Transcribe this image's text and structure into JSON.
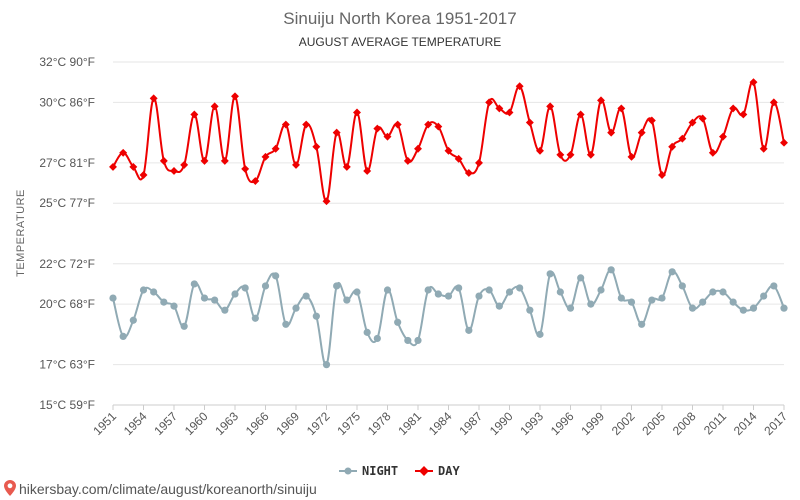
{
  "chart_data": {
    "type": "line",
    "title": "Sinuiju North Korea 1951-2017",
    "subtitle": "AUGUST AVERAGE TEMPERATURE",
    "ylabel": "TEMPERATURE",
    "ylim": [
      15,
      32
    ],
    "y_ticks": [
      {
        "value": 32,
        "label": "32°C 90°F"
      },
      {
        "value": 30,
        "label": "30°C 86°F"
      },
      {
        "value": 27,
        "label": "27°C 81°F"
      },
      {
        "value": 25,
        "label": "25°C 77°F"
      },
      {
        "value": 22,
        "label": "22°C 72°F"
      },
      {
        "value": 20,
        "label": "20°C 68°F"
      },
      {
        "value": 17,
        "label": "17°C 63°F"
      },
      {
        "value": 15,
        "label": "15°C 59°F"
      }
    ],
    "x": [
      1951,
      1952,
      1953,
      1954,
      1955,
      1956,
      1957,
      1958,
      1959,
      1960,
      1961,
      1962,
      1963,
      1964,
      1965,
      1966,
      1967,
      1968,
      1969,
      1970,
      1971,
      1972,
      1973,
      1974,
      1975,
      1976,
      1977,
      1978,
      1979,
      1980,
      1981,
      1982,
      1983,
      1984,
      1985,
      1986,
      1987,
      1988,
      1989,
      1990,
      1991,
      1992,
      1993,
      1994,
      1995,
      1996,
      1997,
      1998,
      1999,
      2000,
      2001,
      2002,
      2003,
      2004,
      2005,
      2006,
      2007,
      2008,
      2009,
      2010,
      2011,
      2012,
      2013,
      2014,
      2015,
      2016,
      2017
    ],
    "x_tick_labels": [
      "1951",
      "1954",
      "1957",
      "1960",
      "1963",
      "1966",
      "1969",
      "1972",
      "1975",
      "1978",
      "1981",
      "1984",
      "1987",
      "1990",
      "1993",
      "1996",
      "1999",
      "2002",
      "2005",
      "2008",
      "2011",
      "2014",
      "2017"
    ],
    "series": [
      {
        "name": "NIGHT",
        "color": "#90aab4",
        "values": [
          20.3,
          18.4,
          19.2,
          20.7,
          20.6,
          20.1,
          19.9,
          18.9,
          21.0,
          20.3,
          20.2,
          19.7,
          20.5,
          20.8,
          19.3,
          20.9,
          21.4,
          19.0,
          19.8,
          20.4,
          19.4,
          17.0,
          20.9,
          20.2,
          20.6,
          18.6,
          18.3,
          20.7,
          19.1,
          18.2,
          18.2,
          20.7,
          20.5,
          20.4,
          20.8,
          18.7,
          20.4,
          20.7,
          19.9,
          20.6,
          20.8,
          19.7,
          18.5,
          21.5,
          20.6,
          19.8,
          21.3,
          20.0,
          20.7,
          21.7,
          20.3,
          20.1,
          19.0,
          20.2,
          20.3,
          21.6,
          20.9,
          19.8,
          20.1,
          20.6,
          20.6,
          20.1,
          19.7,
          19.8,
          20.4,
          20.9,
          19.8
        ]
      },
      {
        "name": "DAY",
        "color": "#ee0000",
        "values": [
          26.8,
          27.5,
          26.8,
          26.4,
          30.2,
          27.1,
          26.6,
          26.9,
          29.4,
          27.1,
          29.8,
          27.1,
          30.3,
          26.7,
          26.1,
          27.3,
          27.7,
          28.9,
          26.9,
          28.9,
          27.8,
          25.1,
          28.5,
          26.8,
          29.5,
          26.6,
          28.7,
          28.3,
          28.9,
          27.1,
          27.7,
          28.9,
          28.8,
          27.6,
          27.2,
          26.5,
          27.0,
          30.0,
          29.7,
          29.5,
          30.8,
          29.0,
          27.6,
          29.8,
          27.4,
          27.4,
          29.4,
          27.4,
          30.1,
          28.5,
          29.7,
          27.3,
          28.5,
          29.1,
          26.4,
          27.8,
          28.2,
          29.0,
          29.2,
          27.5,
          28.3,
          29.7,
          29.4,
          31.0,
          27.7,
          30.0,
          28.0
        ]
      }
    ],
    "legend": "bottom-center"
  },
  "source_text": "hikersbay.com/climate/august/koreanorth/sinuiju"
}
